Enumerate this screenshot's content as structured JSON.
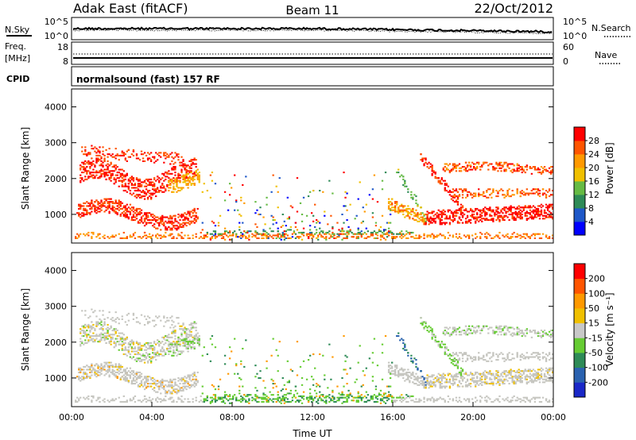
{
  "header": {
    "station": "Adak East (fitACF)",
    "beam": "Beam 11",
    "date": "22/Oct/2012"
  },
  "strip_nsky": {
    "left_label": "N.Sky",
    "right_label": "N.Search",
    "left_ticks": [
      "10^5",
      "10^0"
    ],
    "right_ticks": [
      "10^5",
      "10^0"
    ]
  },
  "strip_freq": {
    "left_label_1": "Freq.",
    "left_label_2": "[MHz]",
    "right_label": "Nave",
    "left_ticks": [
      "18",
      "8"
    ],
    "right_ticks": [
      "60",
      "0"
    ]
  },
  "cpid": {
    "label": "CPID",
    "program": "normalsound (fast) 157 RF"
  },
  "colors": {
    "power_scale": [
      "#0000ff",
      "#1e58c8",
      "#2e8b57",
      "#66bb44",
      "#f0c000",
      "#ff9900",
      "#ff5500",
      "#ff0000"
    ],
    "velocity_scale": [
      "#1a28c8",
      "#2a62b0",
      "#2e8b57",
      "#66cc33",
      "#c8c8c8",
      "#f0c000",
      "#ff9900",
      "#ff5500",
      "#ff0000"
    ],
    "scatter_gray": "#c6c6c0"
  },
  "chart_data": [
    {
      "type": "heatmap",
      "name": "power",
      "ylabel": "Slant Range [km]",
      "yticks": [
        "1000",
        "2000",
        "3000",
        "4000"
      ],
      "ylim": [
        200,
        4500
      ],
      "xlim_hours": [
        0,
        24
      ],
      "colorbar_label": "Power [dB]",
      "colorbar_ticks": [
        "4",
        "8",
        "12",
        "16",
        "20",
        "24",
        "28"
      ]
    },
    {
      "type": "heatmap",
      "name": "velocity",
      "ylabel": "Slant Range [km]",
      "yticks": [
        "1000",
        "2000",
        "3000",
        "4000"
      ],
      "ylim": [
        200,
        4500
      ],
      "xlim_hours": [
        0,
        24
      ],
      "xlabel": "Time UT",
      "xticks": [
        "00:00",
        "04:00",
        "08:00",
        "12:00",
        "16:00",
        "20:00",
        "00:00"
      ],
      "colorbar_label": "Velocity [m s⁻¹]",
      "colorbar_ticks": [
        "200",
        "100",
        "50",
        "15",
        "-15",
        "-50",
        "-100",
        "-200"
      ]
    }
  ]
}
